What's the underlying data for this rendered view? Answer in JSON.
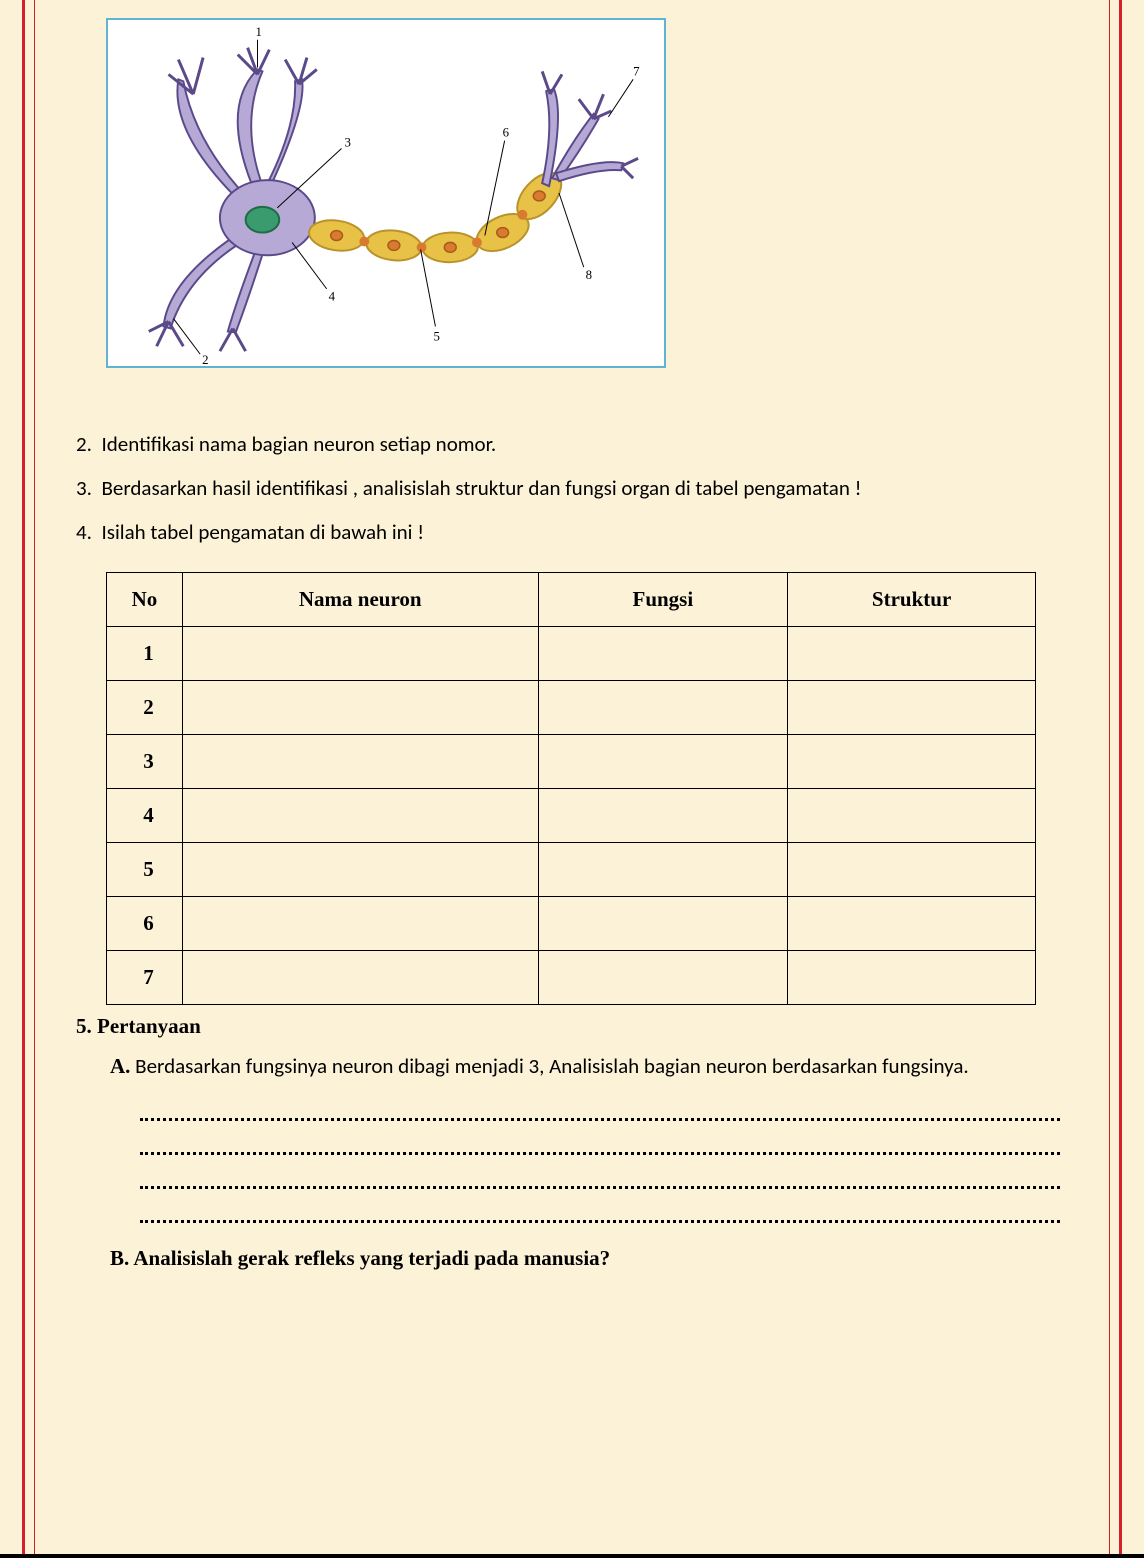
{
  "page": {
    "background_color": "#fcf2d8",
    "border_color": "#d4202a",
    "diagram": {
      "type": "labeled-diagram",
      "border_color": "#5fb3d4",
      "background_color": "#ffffff",
      "labels": [
        "1",
        "2",
        "3",
        "4",
        "5",
        "6",
        "7",
        "8"
      ],
      "neuron_colors": {
        "dendrite_fill": "#b6a9d6",
        "dendrite_stroke": "#5b4a8a",
        "nucleus_fill": "#3a9b6e",
        "nucleus_stroke": "#1e6b45",
        "myelin_fill": "#e8c147",
        "myelin_stroke": "#b8922a",
        "node_fill": "#d97b2e",
        "label_line": "#000000"
      }
    },
    "instructions": [
      {
        "num": "2.",
        "text": "Identifikasi nama bagian neuron setiap nomor."
      },
      {
        "num": "3.",
        "text": "Berdasarkan hasil identifikasi , analisislah struktur dan fungsi organ di tabel  pengamatan !"
      },
      {
        "num": "4.",
        "text": " Isilah tabel pengamatan di bawah ini !"
      }
    ],
    "table": {
      "columns": [
        "No",
        "Nama neuron",
        "Fungsi",
        "Struktur"
      ],
      "rows": [
        "1",
        "2",
        "3",
        "4",
        "5",
        "6",
        "7"
      ],
      "header_font": "Times New Roman",
      "header_weight": "bold"
    },
    "question5": {
      "label": "5.  Pertanyaan",
      "A_lead": "A.",
      "A_text": "Berdasarkan fungsinya neuron dibagi  menjadi 3, Analisislah bagian neuron berdasarkan fungsinya.",
      "answer_lines": 4,
      "B_text": "B. Analisislah gerak refleks yang terjadi pada manusia?"
    }
  }
}
